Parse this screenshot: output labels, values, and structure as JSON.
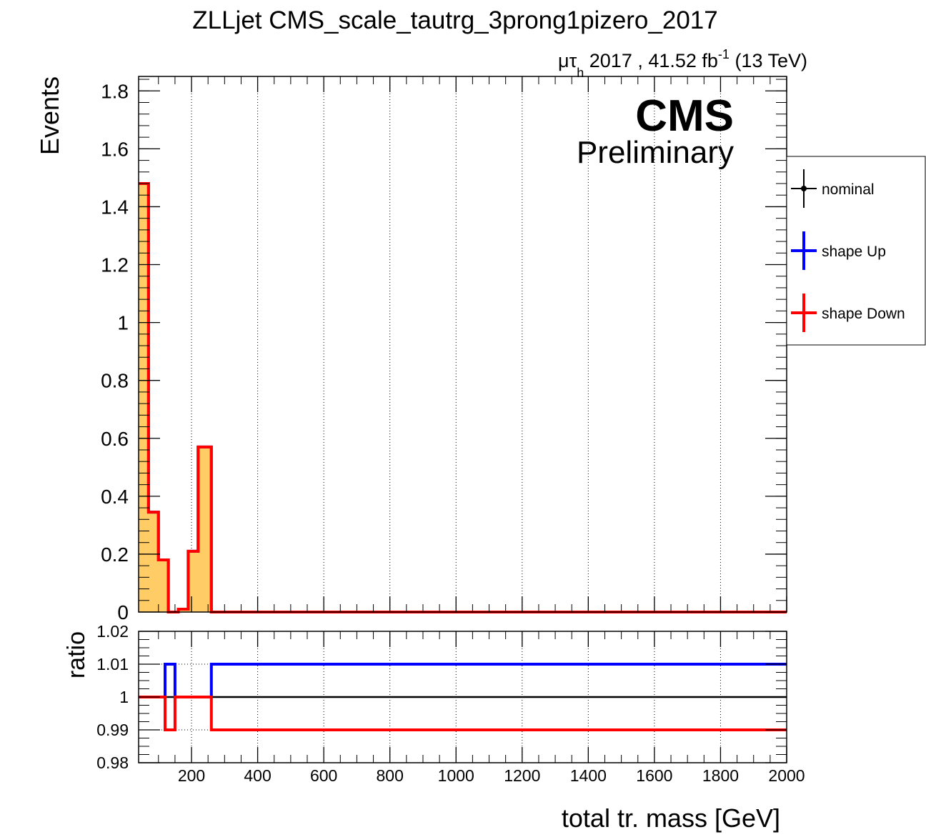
{
  "chart_data": [
    {
      "type": "histogram",
      "panel": "main",
      "title": "ZLLjet CMS_scale_tautrg_3prong1pizero_2017",
      "subtitle": {
        "prefix": "μτ",
        "sub": "h",
        "text": " 2017 , 41.52 fb",
        "sup": "-1",
        "suffix": " (13 TeV)"
      },
      "ylabel": "Events",
      "xlim": [
        40,
        2000
      ],
      "ylim": [
        0,
        1.85
      ],
      "yticks": [
        "0",
        "0.2",
        "0.4",
        "0.6",
        "0.8",
        "1",
        "1.2",
        "1.4",
        "1.6",
        "1.8"
      ],
      "grid_x": true,
      "bin_edges": [
        40,
        70,
        100,
        130,
        160,
        190,
        220,
        260,
        2000
      ],
      "series": [
        {
          "name": "nominal",
          "color": "#000000",
          "style": "fill",
          "fill": "#ffcc66",
          "values": [
            1.48,
            0.345,
            0.18,
            0.0,
            0.01,
            0.21,
            0.57,
            0.0
          ]
        },
        {
          "name": "shape Up",
          "color": "#0000ff",
          "values": [
            1.48,
            0.345,
            0.18,
            0.0,
            0.01,
            0.21,
            0.57,
            0.0
          ]
        },
        {
          "name": "shape Down",
          "color": "#ff0000",
          "values": [
            1.48,
            0.345,
            0.18,
            0.0,
            0.01,
            0.21,
            0.57,
            0.0
          ]
        }
      ],
      "legend": [
        "nominal",
        "shape Up",
        "shape Down"
      ],
      "legend_position": "right, outside"
    },
    {
      "type": "line",
      "panel": "ratio",
      "ylabel": "ratio",
      "xlabel": "total tr. mass [GeV]",
      "xlim": [
        40,
        2000
      ],
      "ylim": [
        0.98,
        1.02
      ],
      "yticks": [
        "0.98",
        "0.99",
        "1",
        "1.01",
        "1.02"
      ],
      "xticks": [
        "200",
        "400",
        "600",
        "800",
        "1000",
        "1200",
        "1400",
        "1600",
        "1800",
        "2000"
      ],
      "bin_edges": [
        40,
        120,
        150,
        260,
        2000
      ],
      "series": [
        {
          "name": "nominal",
          "color": "#000000",
          "values": [
            1.0,
            1.0,
            1.0,
            1.0
          ]
        },
        {
          "name": "shape Up",
          "color": "#0000ff",
          "values": [
            1.0,
            1.01,
            1.0,
            1.01
          ]
        },
        {
          "name": "shape Down",
          "color": "#ff0000",
          "values": [
            1.0,
            0.99,
            1.0,
            0.99
          ]
        }
      ]
    }
  ],
  "cms_label": "CMS",
  "cms_sublabel": "Preliminary"
}
